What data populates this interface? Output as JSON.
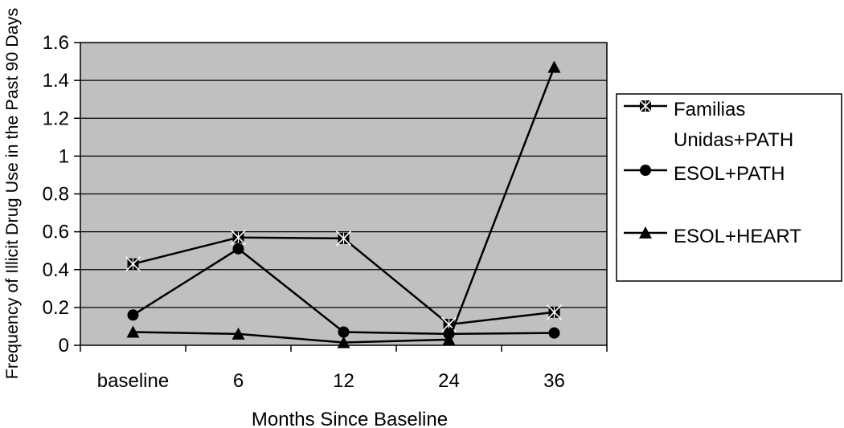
{
  "chart_data": {
    "type": "line",
    "title": "",
    "xlabel": "Months Since Baseline",
    "ylabel": "Frequency of Illicit Drug Use in the Past 90 Days",
    "categories": [
      "baseline",
      "6",
      "12",
      "24",
      "36"
    ],
    "ylim": [
      0,
      1.6
    ],
    "yticks": [
      "0",
      "0.2",
      "0.4",
      "0.6",
      "0.8",
      "1",
      "1.2",
      "1.4",
      "1.6"
    ],
    "grid": true,
    "legend_position": "right",
    "plot_background": "#c0c0c0",
    "line_color": "#000000",
    "series": [
      {
        "name": "Familias Unidas+PATH",
        "legend_lines": [
          "Familias",
          "Unidas+PATH"
        ],
        "marker": "asterisk-square",
        "values": [
          0.43,
          0.57,
          0.565,
          0.11,
          0.175
        ]
      },
      {
        "name": "ESOL+PATH",
        "legend_lines": [
          "ESOL+PATH"
        ],
        "marker": "circle",
        "values": [
          0.16,
          0.51,
          0.07,
          0.06,
          0.065
        ]
      },
      {
        "name": "ESOL+HEART",
        "legend_lines": [
          "ESOL+HEART"
        ],
        "marker": "triangle",
        "values": [
          0.07,
          0.06,
          0.015,
          0.03,
          1.47
        ]
      }
    ]
  }
}
